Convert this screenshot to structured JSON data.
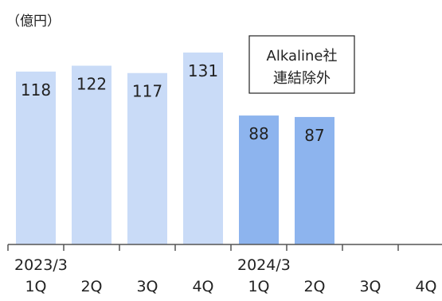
{
  "chart_data": {
    "type": "bar",
    "unit_label": "（億円）",
    "categories": [
      "1Q",
      "2Q",
      "3Q",
      "4Q",
      "1Q",
      "2Q",
      "3Q",
      "4Q"
    ],
    "fiscal_years": [
      {
        "label": "2023/3",
        "start_index": 0
      },
      {
        "label": "2024/3",
        "start_index": 4
      }
    ],
    "series": [
      {
        "values": [
          118,
          122,
          117,
          131,
          88,
          87,
          null,
          null
        ],
        "colors": [
          "#c9dbf7",
          "#c9dbf7",
          "#c9dbf7",
          "#c9dbf7",
          "#8db4ee",
          "#8db4ee",
          null,
          null
        ]
      }
    ],
    "data_labels": [
      "118",
      "122",
      "117",
      "131",
      "88",
      "87"
    ],
    "annotation": {
      "lines": [
        "Alkaline社",
        "連結除外"
      ]
    },
    "ylim": [
      0,
      150
    ],
    "grid": false,
    "axis_color": "#555555"
  }
}
